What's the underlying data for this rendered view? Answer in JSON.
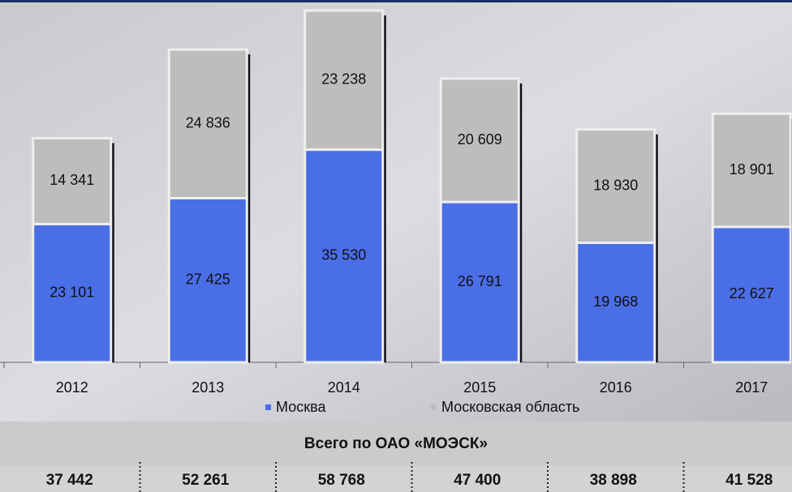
{
  "chart_data": {
    "type": "stacked_bar",
    "categories": [
      "2012",
      "2013",
      "2014",
      "2015",
      "2016",
      "2017"
    ],
    "series": [
      {
        "name": "Москва",
        "color": "#4a6ee6",
        "values": [
          23101,
          27425,
          35530,
          26791,
          19968,
          22627
        ],
        "value_labels": [
          "23 101",
          "27 425",
          "35 530",
          "26 791",
          "19 968",
          "22 627"
        ]
      },
      {
        "name": "Московская область",
        "color": "#bdbdbd",
        "values": [
          14341,
          24836,
          23238,
          20609,
          18930,
          18901
        ],
        "value_labels": [
          "14 341",
          "24 836",
          "23 238",
          "20 609",
          "18 930",
          "18 901"
        ]
      }
    ],
    "total_title": "Всего по  ОАО «МОЭСК»",
    "totals": [
      37442,
      52261,
      58768,
      47400,
      38898,
      41528
    ],
    "total_labels": [
      "37 442",
      "52 261",
      "58 768",
      "47 400",
      "38 898",
      "41 528"
    ]
  }
}
